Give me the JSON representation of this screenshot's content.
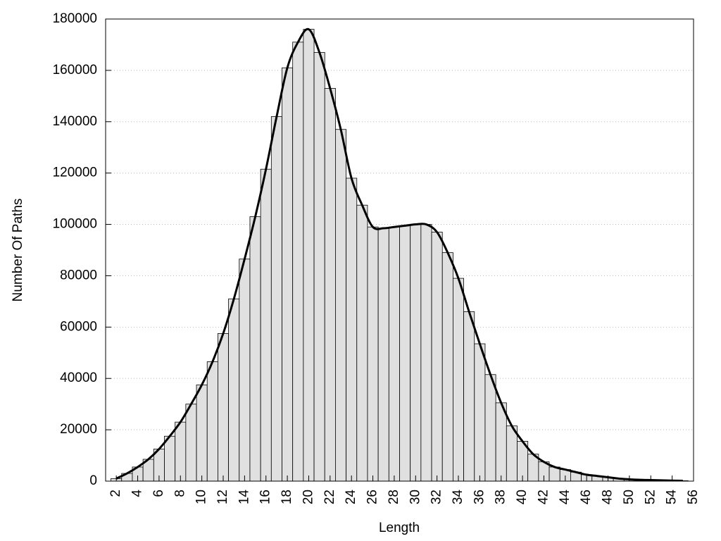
{
  "chart_data": {
    "type": "histogram",
    "x_label": "Length",
    "y_label": "Number Of Paths",
    "x": [
      2,
      3,
      4,
      5,
      6,
      7,
      8,
      9,
      10,
      11,
      12,
      13,
      14,
      15,
      16,
      17,
      18,
      19,
      20,
      21,
      22,
      23,
      24,
      25,
      26,
      27,
      28,
      29,
      30,
      31,
      32,
      33,
      34,
      35,
      36,
      37,
      38,
      39,
      40,
      41,
      42,
      43,
      44,
      45,
      46,
      47,
      48,
      49,
      50,
      51,
      52,
      53,
      54,
      55
    ],
    "values": [
      1000,
      3000,
      5500,
      8500,
      12500,
      17500,
      23000,
      30000,
      37500,
      46500,
      57500,
      71000,
      86500,
      103000,
      121500,
      142000,
      161000,
      171000,
      176000,
      167000,
      153000,
      137000,
      118000,
      107500,
      99000,
      98500,
      99000,
      99500,
      100000,
      100000,
      97000,
      89000,
      79000,
      66000,
      53500,
      41500,
      30500,
      21500,
      15500,
      10500,
      7500,
      5500,
      4500,
      3500,
      2500,
      2000,
      1500,
      1000,
      700,
      500,
      400,
      300,
      200,
      150
    ],
    "bar_color": "#e0e0e0",
    "curve": true,
    "curve_color": "#000000",
    "xlim": [
      1,
      56
    ],
    "xticks": [
      2,
      4,
      6,
      8,
      10,
      12,
      14,
      16,
      18,
      20,
      22,
      24,
      26,
      28,
      30,
      32,
      34,
      36,
      38,
      40,
      42,
      44,
      46,
      48,
      50,
      52,
      54,
      56
    ],
    "ylim": [
      0,
      180000
    ],
    "yticks": [
      0,
      20000,
      40000,
      60000,
      80000,
      100000,
      120000,
      140000,
      160000,
      180000
    ],
    "grid": true
  }
}
